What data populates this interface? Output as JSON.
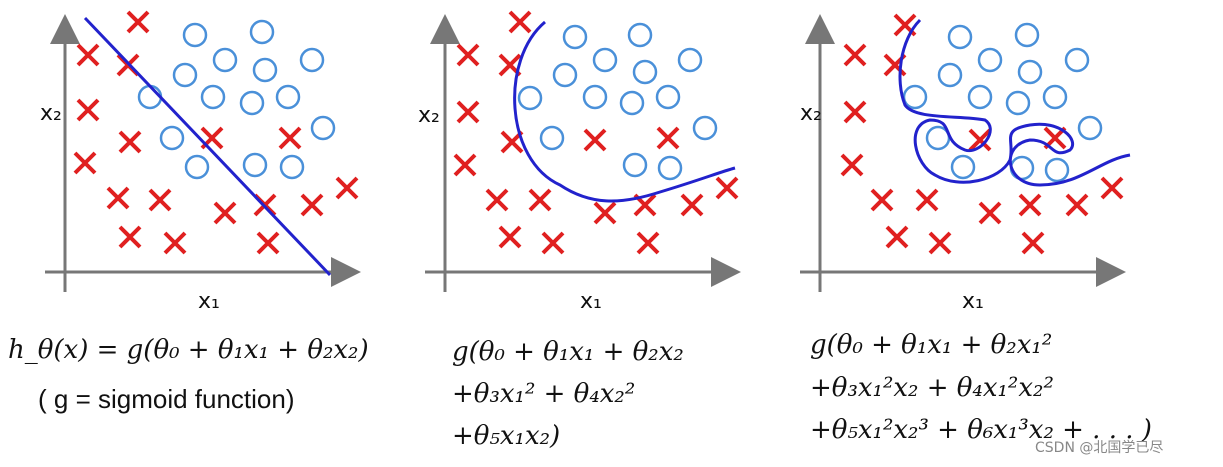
{
  "panels": [
    {
      "x_label": "x₁",
      "y_label": "x₂",
      "formula": [
        "h_θ(x) = g(θ₀ + θ₁x₁ + θ₂x₂)"
      ],
      "note": "( g = sigmoid function)"
    },
    {
      "x_label": "x₁",
      "y_label": "x₂",
      "formula": [
        "g(θ₀ + θ₁x₁ + θ₂x₂",
        "+θ₃x₁² + θ₄x₂²",
        "+θ₅x₁x₂)"
      ]
    },
    {
      "x_label": "x₁",
      "y_label": "x₂",
      "formula": [
        "g(θ₀ + θ₁x₁ + θ₂x₁²",
        "+θ₃x₁²x₂ + θ₄x₁²x₂²",
        "+θ₅x₁²x₂³ + θ₆x₁³x₂ + . . . )"
      ]
    }
  ],
  "watermark": "CSDN @北国学已尽"
}
